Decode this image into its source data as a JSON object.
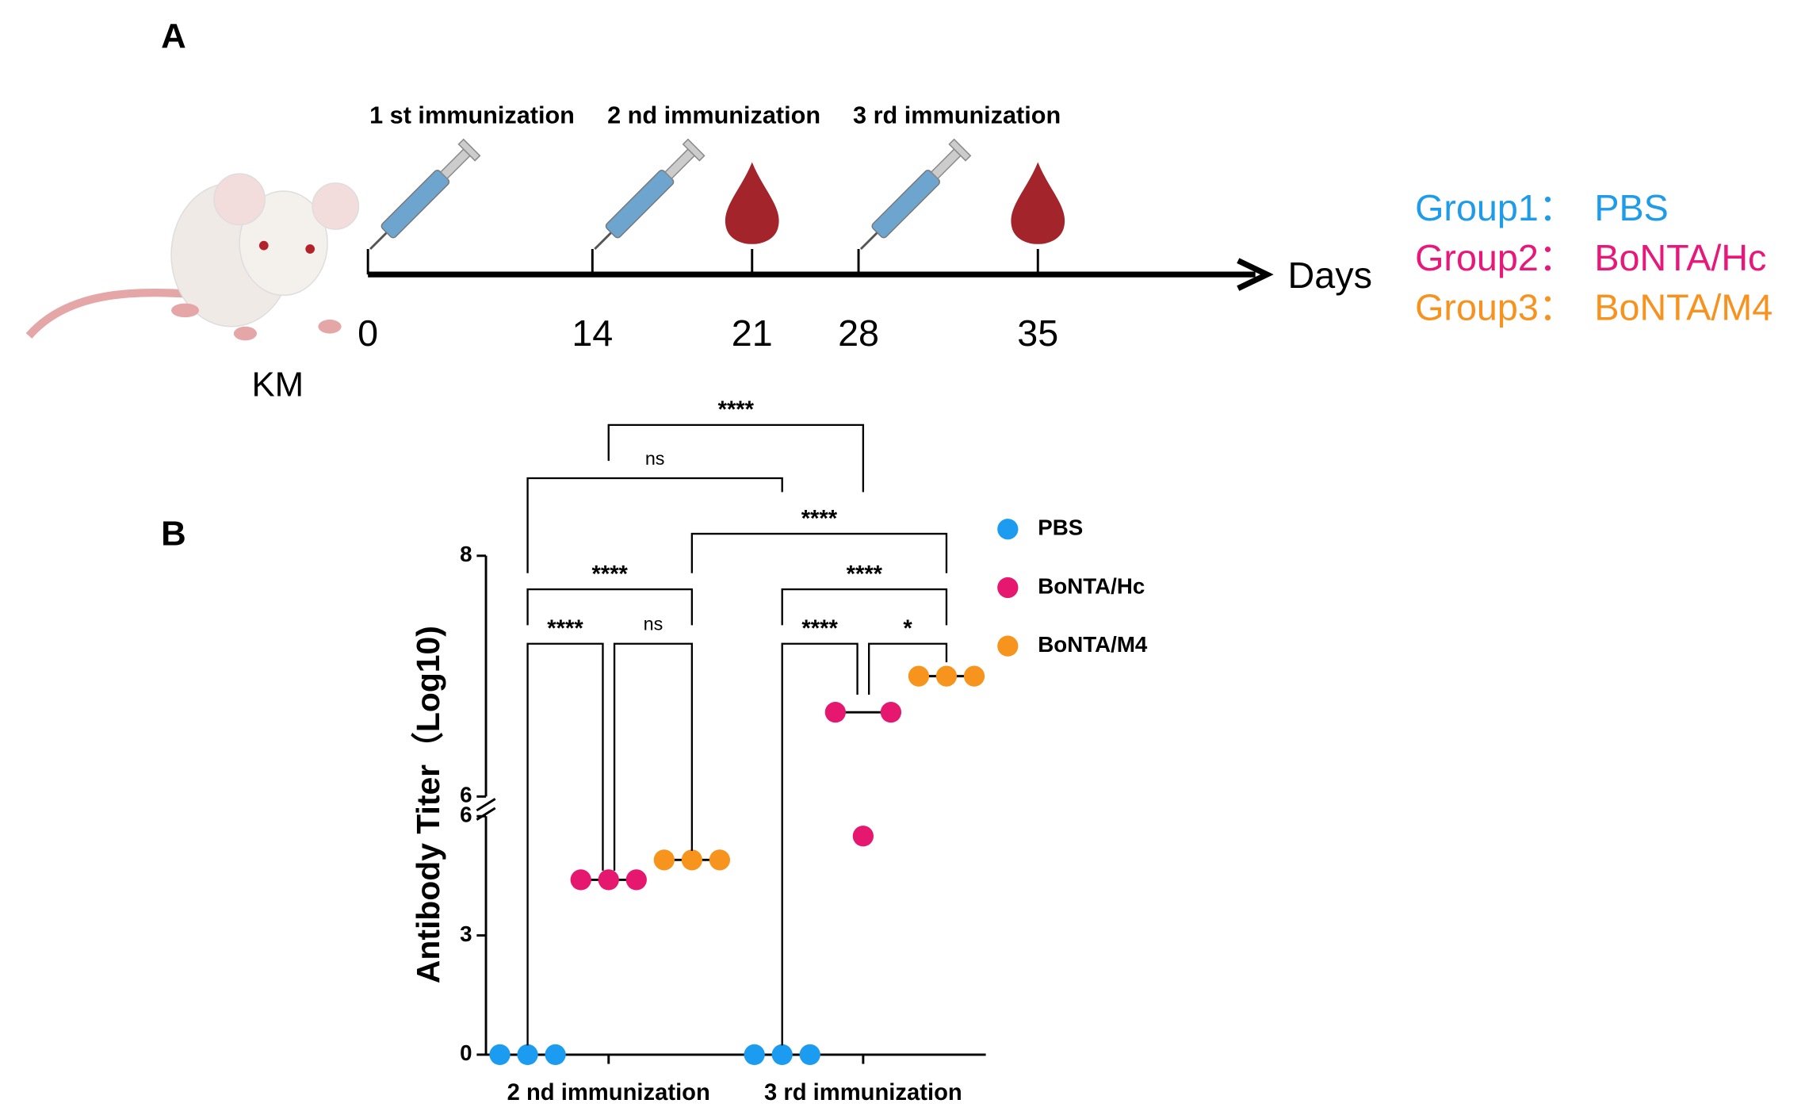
{
  "panel_a": {
    "label": "A",
    "immunizations": [
      "1 st immunization",
      "2 nd immunization",
      "3 rd immunization"
    ],
    "days": [
      0,
      14,
      21,
      28,
      35
    ],
    "days_label": "Days",
    "animal": "KM",
    "groups": [
      {
        "group": "Group1：",
        "name": "PBS",
        "color": "#1e9be9"
      },
      {
        "group": "Group2：",
        "name": "BoNTA/Hc",
        "color": "#e8177a"
      },
      {
        "group": "Group3：",
        "name": "BoNTA/M4",
        "color": "#f7921e"
      }
    ]
  },
  "chart_data": {
    "type": "dot",
    "label": "B",
    "ylabel": "Antibody  Titer（Log10)",
    "categories": [
      "2 nd immunization",
      "3 rd  immunization"
    ],
    "segments": [
      {
        "ylim": [
          0,
          6
        ],
        "yticks": [
          0,
          3,
          6
        ]
      },
      {
        "ylim": [
          6,
          8
        ],
        "yticks": [
          6,
          8
        ]
      }
    ],
    "series": [
      {
        "name": "PBS",
        "color": "#1c9cf0",
        "values": [
          [
            0,
            0,
            0
          ],
          [
            0,
            0,
            0
          ]
        ]
      },
      {
        "name": "BoNTA/Hc",
        "color": "#e5176f",
        "values": [
          [
            4.4,
            4.4,
            4.4
          ],
          [
            6.7,
            5.5,
            6.7
          ]
        ]
      },
      {
        "name": "BoNTA/M4",
        "color": "#f7941d",
        "values": [
          [
            4.9,
            4.9,
            4.9
          ],
          [
            7.0,
            7.0,
            7.0
          ]
        ]
      }
    ],
    "comparisons": [
      {
        "label": "****",
        "groups": [
          [
            0,
            1
          ],
          [
            1,
            1
          ]
        ]
      },
      {
        "label": "ns",
        "groups": [
          [
            0,
            0
          ],
          [
            1,
            0
          ]
        ]
      },
      {
        "label": "****",
        "groups": [
          [
            0,
            2
          ],
          [
            1,
            2
          ]
        ]
      },
      {
        "label": "****",
        "groups": [
          [
            0,
            0
          ],
          [
            0,
            2
          ]
        ]
      },
      {
        "label": "****",
        "groups": [
          [
            1,
            0
          ],
          [
            1,
            2
          ]
        ]
      },
      {
        "label": "****",
        "groups": [
          [
            0,
            0
          ],
          [
            0,
            1
          ]
        ]
      },
      {
        "label": "ns",
        "groups": [
          [
            0,
            1
          ],
          [
            0,
            2
          ]
        ]
      },
      {
        "label": "****",
        "groups": [
          [
            1,
            0
          ],
          [
            1,
            1
          ]
        ]
      },
      {
        "label": "*",
        "groups": [
          [
            1,
            1
          ],
          [
            1,
            2
          ]
        ]
      }
    ]
  }
}
